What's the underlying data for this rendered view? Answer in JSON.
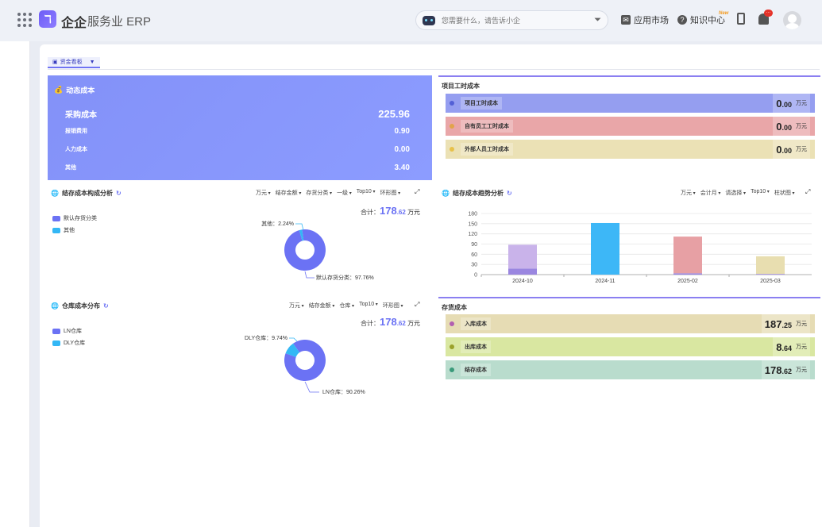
{
  "app": {
    "brand": "企企",
    "product": "服务业 ERP",
    "logo_glyph": "ℸ"
  },
  "topbar": {
    "search_placeholder": "您需要什么，请告诉小企",
    "market_label": "应用市场",
    "knowledge_label": "知识中心",
    "new_badge": "New",
    "bell_count": "···"
  },
  "dashboard": {
    "tab_label": "资金看板"
  },
  "dynamic_cost": {
    "title": "动态成本",
    "rows": [
      {
        "label": "采购成本",
        "value": "225.96"
      },
      {
        "label": "报销费用",
        "value": "0.90"
      },
      {
        "label": "人力成本",
        "value": "0.00"
      },
      {
        "label": "其他",
        "value": "3.40"
      }
    ]
  },
  "project_cost": {
    "title": "项目工时成本",
    "rows": [
      {
        "label": "项目工时成本",
        "int": "0",
        "dec": ".00",
        "unit": "万元",
        "color": "#4f5bd5",
        "bg": "#959ef0",
        "dot": "#5360d6"
      },
      {
        "label": "自有员工工时成本",
        "int": "0",
        "dec": ".00",
        "unit": "万元",
        "color": "#e7a0a4",
        "bg": "#e9a6a8",
        "dot": "#e2a34a"
      },
      {
        "label": "外部人员工时成本",
        "int": "0",
        "dec": ".00",
        "unit": "万元",
        "color": "#e8deb0",
        "bg": "#ebe1b5",
        "dot": "#e7c14a"
      }
    ]
  },
  "stock_composition": {
    "title": "结存成本构成分析",
    "controls": [
      "万元",
      "结存金额",
      "存货分类",
      "一级",
      "Top10",
      "环形图"
    ],
    "total_label": "合计：",
    "total_int": "178",
    "total_dec": ".62",
    "total_unit": "万元",
    "legend": [
      {
        "name": "默认存货分类",
        "color": "#6b72f4"
      },
      {
        "name": "其他",
        "color": "#33b7f5"
      }
    ],
    "labels": [
      "其他：2.24%",
      "默认存货分类：97.76%"
    ]
  },
  "stock_trend": {
    "title": "结存成本趋势分析",
    "controls": [
      "万元",
      "会计月",
      "请选择",
      "Top10",
      "柱状图"
    ]
  },
  "warehouse": {
    "title": "仓库成本分布",
    "controls": [
      "万元",
      "结存金额",
      "仓库",
      "Top10",
      "环形图"
    ],
    "total_label": "合计：",
    "total_int": "178",
    "total_dec": ".62",
    "total_unit": "万元",
    "legend": [
      {
        "name": "LN仓库",
        "color": "#6b72f4"
      },
      {
        "name": "DLY仓库",
        "color": "#33b7f5"
      }
    ],
    "labels": [
      "DLY仓库：9.74%",
      "LN仓库：90.26%"
    ]
  },
  "inventory_cost": {
    "title": "存货成本",
    "rows": [
      {
        "label": "入库成本",
        "int": "187",
        "dec": ".25",
        "unit": "万元",
        "bg": "#e6dcb4",
        "dot": "#b25fb0"
      },
      {
        "label": "出库成本",
        "int": "8",
        "dec": ".64",
        "unit": "万元",
        "bg": "#d9e7a1",
        "dot": "#9aa12a"
      },
      {
        "label": "结存成本",
        "int": "178",
        "dec": ".62",
        "unit": "万元",
        "bg": "#b9dccd",
        "dot": "#3a9a7a"
      }
    ]
  },
  "chart_data": [
    {
      "type": "pie",
      "variant": "donut",
      "title": "结存成本构成分析",
      "labels": [
        "默认存货分类",
        "其他"
      ],
      "values": [
        97.76,
        2.24
      ],
      "colors": [
        "#6b72f4",
        "#33b7f5"
      ]
    },
    {
      "type": "bar",
      "title": "结存成本趋势分析",
      "categories": [
        "2024-10",
        "2024-11",
        "2025-02",
        "2025-03"
      ],
      "series": [
        {
          "values": [
            18,
            0,
            4,
            2
          ],
          "color": "#9a86e0"
        },
        {
          "values": [
            70,
            152,
            108,
            52
          ],
          "colors": [
            "#c9b3ea",
            "#3db7f7",
            "#e7a0a4",
            "#e8deb0"
          ]
        }
      ],
      "stacked": true,
      "ylim": [
        0,
        180
      ],
      "yticks": [
        0,
        30,
        60,
        90,
        120,
        150,
        180
      ]
    },
    {
      "type": "pie",
      "variant": "donut",
      "title": "仓库成本分布",
      "labels": [
        "LN仓库",
        "DLY仓库"
      ],
      "values": [
        90.26,
        9.74
      ],
      "colors": [
        "#6b72f4",
        "#33b7f5"
      ]
    }
  ]
}
